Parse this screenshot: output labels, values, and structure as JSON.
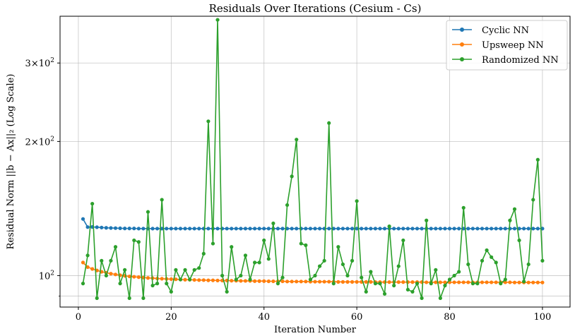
{
  "chart_data": {
    "type": "line",
    "title": "Residuals Over Iterations (Cesium - Cs)",
    "xlabel": "Iteration Number",
    "ylabel": "Residual Norm ||b − Ax||₂ (Log Scale)",
    "yscale": "log",
    "xlim": [
      -3.95,
      105.95
    ],
    "ylim": [
      85.0,
      382.0
    ],
    "x_ticks": [
      0,
      20,
      40,
      60,
      80,
      100
    ],
    "x_tick_labels": [
      "0",
      "20",
      "40",
      "60",
      "80",
      "100"
    ],
    "y_major_ticks": [
      100,
      200,
      300
    ],
    "y_tick_labels": [
      "10^2",
      "2×10^2",
      "3×10^2"
    ],
    "y_minor_ticks": [
      90
    ],
    "grid": true,
    "legend_position": "upper right",
    "x": [
      1,
      2,
      3,
      4,
      5,
      6,
      7,
      8,
      9,
      10,
      11,
      12,
      13,
      14,
      15,
      16,
      17,
      18,
      19,
      20,
      21,
      22,
      23,
      24,
      25,
      26,
      27,
      28,
      29,
      30,
      31,
      32,
      33,
      34,
      35,
      36,
      37,
      38,
      39,
      40,
      41,
      42,
      43,
      44,
      45,
      46,
      47,
      48,
      49,
      50,
      51,
      52,
      53,
      54,
      55,
      56,
      57,
      58,
      59,
      60,
      61,
      62,
      63,
      64,
      65,
      66,
      67,
      68,
      69,
      70,
      71,
      72,
      73,
      74,
      75,
      76,
      77,
      78,
      79,
      80,
      81,
      82,
      83,
      84,
      85,
      86,
      87,
      88,
      89,
      90,
      91,
      92,
      93,
      94,
      95,
      96,
      97,
      98,
      99,
      100
    ],
    "series": [
      {
        "name": "Cyclic NN",
        "color": "#1f77b4",
        "values": [
          134,
          128.5,
          128.6,
          128.4,
          128.2,
          128.0,
          127.9,
          127.8,
          127.7,
          127.6,
          127.6,
          127.6,
          127.5,
          127.5,
          127.5,
          127.5,
          127.5,
          127.5,
          127.5,
          127.5,
          127.5,
          127.5,
          127.5,
          127.5,
          127.5,
          127.5,
          127.5,
          127.5,
          127.5,
          127.5,
          127.5,
          127.5,
          127.5,
          127.5,
          127.5,
          127.5,
          127.5,
          127.5,
          127.5,
          127.5,
          127.5,
          127.5,
          127.5,
          127.5,
          127.5,
          127.5,
          127.5,
          127.5,
          127.5,
          127.5,
          127.5,
          127.5,
          127.5,
          127.5,
          127.5,
          127.5,
          127.5,
          127.5,
          127.5,
          127.5,
          127.5,
          127.5,
          127.5,
          127.5,
          127.5,
          127.5,
          127.5,
          127.5,
          127.5,
          127.5,
          127.5,
          127.5,
          127.5,
          127.5,
          127.5,
          127.5,
          127.5,
          127.5,
          127.5,
          127.5,
          127.5,
          127.5,
          127.5,
          127.5,
          127.5,
          127.5,
          127.5,
          127.5,
          127.5,
          127.5,
          127.5,
          127.5,
          127.5,
          127.5,
          127.5,
          127.5,
          127.5,
          127.5,
          127.5,
          127.5
        ]
      },
      {
        "name": "Upsweep NN",
        "color": "#ff7f0e",
        "values": [
          107,
          104.5,
          103.5,
          102.7,
          102.0,
          101.5,
          101.0,
          100.6,
          100.2,
          99.9,
          99.6,
          99.4,
          99.2,
          99.0,
          98.8,
          98.7,
          98.5,
          98.4,
          98.3,
          98.2,
          98.1,
          98.0,
          97.9,
          97.9,
          97.8,
          97.7,
          97.7,
          97.6,
          97.6,
          97.5,
          97.5,
          97.5,
          97.4,
          97.4,
          97.3,
          97.3,
          97.3,
          97.2,
          97.2,
          97.2,
          97.1,
          97.1,
          97.1,
          97.1,
          97.0,
          97.0,
          97.0,
          97.0,
          97.0,
          96.9,
          96.9,
          96.9,
          96.9,
          96.9,
          96.9,
          96.8,
          96.8,
          96.8,
          96.8,
          96.8,
          96.8,
          96.8,
          96.8,
          96.7,
          96.7,
          96.7,
          96.7,
          96.7,
          96.7,
          96.7,
          96.7,
          96.7,
          96.7,
          96.7,
          96.6,
          96.6,
          96.6,
          96.6,
          96.6,
          96.6,
          96.6,
          96.6,
          96.6,
          96.6,
          96.6,
          96.6,
          96.6,
          96.6,
          96.6,
          96.6,
          96.6,
          96.6,
          96.6,
          96.5,
          96.5,
          96.5,
          96.5,
          96.5,
          96.5,
          96.5
        ]
      },
      {
        "name": "Randomized NN",
        "color": "#2ca02c",
        "values": [
          96,
          111,
          145,
          89,
          108,
          100,
          108,
          116,
          96,
          103,
          89,
          120,
          119,
          89,
          139,
          95,
          96,
          148,
          96,
          92,
          103,
          98,
          103,
          98,
          103,
          104,
          112,
          222,
          118,
          375,
          100,
          92,
          116,
          98,
          100,
          111,
          98,
          107,
          107,
          120,
          109,
          131,
          96,
          99,
          144,
          167,
          202,
          118,
          117,
          98,
          100,
          105,
          108,
          220,
          96,
          116,
          106,
          100,
          108,
          147,
          99,
          92,
          102,
          96,
          96,
          91,
          129,
          95,
          105,
          120,
          93,
          92,
          96,
          89,
          133,
          96,
          103,
          89,
          95,
          98,
          100,
          102,
          142,
          106,
          96,
          96,
          108,
          114,
          110,
          107,
          96,
          98,
          133,
          141,
          120,
          97,
          106,
          148,
          182,
          108
        ]
      }
    ]
  }
}
